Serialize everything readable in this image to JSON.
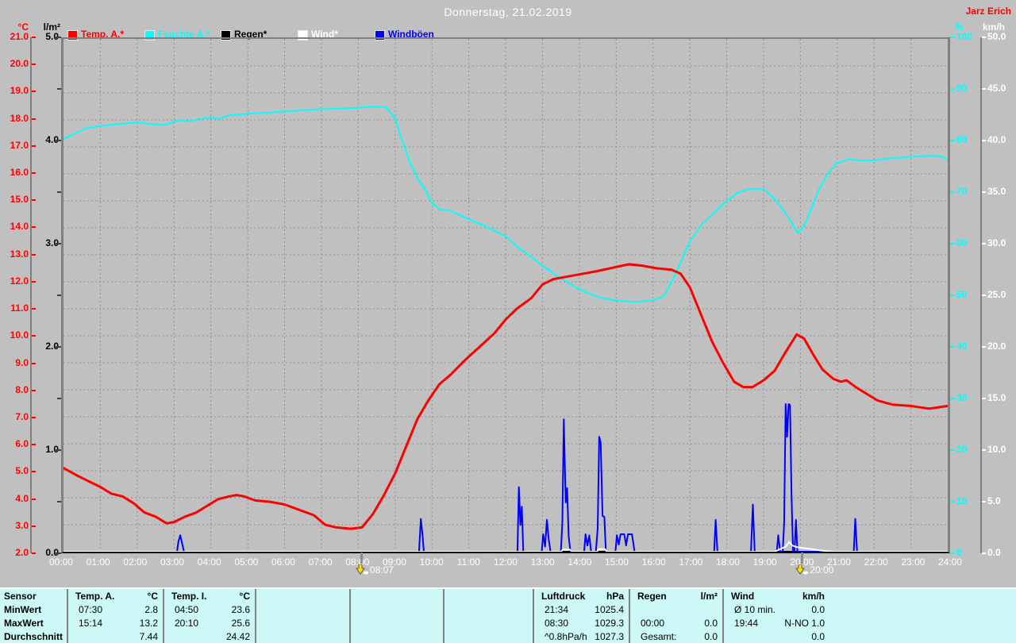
{
  "header": {
    "title": "Donnerstag, 21.02.2019",
    "author": "Jarz Erich"
  },
  "legend": [
    {
      "label": "Temp. A.*",
      "color": "#ff0000"
    },
    {
      "label": "Feuchte A.*",
      "color": "#00ffff"
    },
    {
      "label": "Regen*",
      "color": "#000000"
    },
    {
      "label": "Wind*",
      "color": "#ffffff"
    },
    {
      "label": "Windböen",
      "color": "#0000ff"
    }
  ],
  "axes": {
    "temp": {
      "unit": "°C",
      "color": "#ff0000",
      "min": 2,
      "max": 21,
      "step": 1,
      "decimals": 1
    },
    "rain": {
      "unit": "l/m²",
      "color": "#000000",
      "min": 0,
      "max": 5,
      "step": 1,
      "decimals": 1
    },
    "humidity": {
      "unit": "%",
      "color": "#00ffff",
      "min": 0,
      "max": 100,
      "step": 10,
      "decimals": 0
    },
    "wind": {
      "unit": "km/h",
      "color": "#ffffff",
      "min": 0,
      "max": 50,
      "step": 5,
      "decimals": 1
    }
  },
  "x_axis": {
    "labels": [
      "00:00",
      "01:00",
      "02:00",
      "03:00",
      "04:00",
      "05:00",
      "06:00",
      "07:00",
      "08:00",
      "09:00",
      "10:00",
      "11:00",
      "12:00",
      "13:00",
      "14:00",
      "15:00",
      "16:00",
      "17:00",
      "18:00",
      "19:00",
      "20:00",
      "21:00",
      "22:00",
      "23:00",
      "24:00"
    ]
  },
  "markers": [
    {
      "time": "08:07",
      "hour": 8.12
    },
    {
      "time": "20:00",
      "hour": 20.0
    }
  ],
  "chart_data": {
    "type": "line",
    "title": "Donnerstag, 21.02.2019",
    "x": {
      "min": 0,
      "max": 24,
      "unit": "h",
      "gridline_every": 1
    },
    "y_axes": {
      "temp_c": {
        "min": 2,
        "max": 21,
        "gridline_every": 1
      },
      "rain_lm2": {
        "min": 0,
        "max": 5
      },
      "humidity_pct": {
        "min": 0,
        "max": 100
      },
      "wind_kmh": {
        "min": 0,
        "max": 50
      }
    },
    "legend_position": "top",
    "grid": true,
    "series": [
      {
        "name": "Regen",
        "axis": "rain_lm2",
        "color": "#000000",
        "points": [
          [
            0,
            0
          ],
          [
            24,
            0
          ]
        ]
      },
      {
        "name": "Feuchte A.",
        "axis": "humidity_pct",
        "color": "#00ffff",
        "points": [
          [
            0,
            80.5
          ],
          [
            0.3,
            81.5
          ],
          [
            0.6,
            82.5
          ],
          [
            1,
            83
          ],
          [
            1.5,
            83.4
          ],
          [
            2,
            83.7
          ],
          [
            2.4,
            83.4
          ],
          [
            2.7,
            83.2
          ],
          [
            3,
            83.8
          ],
          [
            3.2,
            84.2
          ],
          [
            3.4,
            83.9
          ],
          [
            3.7,
            84.4
          ],
          [
            4,
            84.7
          ],
          [
            4.2,
            84.4
          ],
          [
            4.5,
            85.1
          ],
          [
            5,
            85.4
          ],
          [
            5.5,
            85.6
          ],
          [
            6,
            85.8
          ],
          [
            6.5,
            86.1
          ],
          [
            7,
            86.3
          ],
          [
            7.5,
            86.4
          ],
          [
            8,
            86.6
          ],
          [
            8.4,
            86.8
          ],
          [
            8.75,
            86.7
          ],
          [
            9,
            84.5
          ],
          [
            9.2,
            80
          ],
          [
            9.4,
            76
          ],
          [
            9.6,
            73
          ],
          [
            9.8,
            70.8
          ],
          [
            10,
            68
          ],
          [
            10.2,
            66.8
          ],
          [
            10.5,
            66.5
          ],
          [
            10.8,
            65.5
          ],
          [
            11.1,
            64.5
          ],
          [
            11.5,
            63.3
          ],
          [
            12,
            61.5
          ],
          [
            12.3,
            59.5
          ],
          [
            12.7,
            57.5
          ],
          [
            13,
            55.8
          ],
          [
            13.4,
            53.8
          ],
          [
            13.8,
            52
          ],
          [
            14.2,
            50.5
          ],
          [
            14.6,
            49.5
          ],
          [
            15,
            49
          ],
          [
            15.5,
            48.7
          ],
          [
            16,
            49
          ],
          [
            16.3,
            49.8
          ],
          [
            16.6,
            54
          ],
          [
            17,
            60.5
          ],
          [
            17.35,
            64
          ],
          [
            17.9,
            67.8
          ],
          [
            18.3,
            70
          ],
          [
            18.6,
            70.7
          ],
          [
            19,
            70.7
          ],
          [
            19.3,
            68.8
          ],
          [
            19.6,
            66
          ],
          [
            19.93,
            62.2
          ],
          [
            20.1,
            63.5
          ],
          [
            20.3,
            67
          ],
          [
            20.5,
            70.5
          ],
          [
            20.75,
            73.8
          ],
          [
            21,
            75.8
          ],
          [
            21.3,
            76.5
          ],
          [
            21.6,
            76.3
          ],
          [
            22,
            76.3
          ],
          [
            22.4,
            76.7
          ],
          [
            22.8,
            76.9
          ],
          [
            23.2,
            77.1
          ],
          [
            23.6,
            77.2
          ],
          [
            23.85,
            77
          ],
          [
            24,
            76.4
          ]
        ]
      },
      {
        "name": "Temp. A.",
        "axis": "temp_c",
        "color": "#ff0000",
        "points": [
          [
            0,
            5.1
          ],
          [
            0.2,
            4.95
          ],
          [
            0.4,
            4.8
          ],
          [
            0.7,
            4.6
          ],
          [
            1,
            4.4
          ],
          [
            1.3,
            4.15
          ],
          [
            1.6,
            4.05
          ],
          [
            1.9,
            3.8
          ],
          [
            2.2,
            3.45
          ],
          [
            2.5,
            3.3
          ],
          [
            2.8,
            3.05
          ],
          [
            3,
            3.1
          ],
          [
            3.3,
            3.3
          ],
          [
            3.6,
            3.45
          ],
          [
            3.9,
            3.7
          ],
          [
            4.2,
            3.95
          ],
          [
            4.5,
            4.05
          ],
          [
            4.7,
            4.1
          ],
          [
            4.9,
            4.05
          ],
          [
            5.2,
            3.9
          ],
          [
            5.6,
            3.85
          ],
          [
            6,
            3.75
          ],
          [
            6.4,
            3.55
          ],
          [
            6.8,
            3.35
          ],
          [
            7.1,
            3
          ],
          [
            7.4,
            2.9
          ],
          [
            7.8,
            2.85
          ],
          [
            8.1,
            2.9
          ],
          [
            8.4,
            3.4
          ],
          [
            8.7,
            4.1
          ],
          [
            9,
            4.9
          ],
          [
            9.3,
            5.9
          ],
          [
            9.6,
            6.9
          ],
          [
            9.9,
            7.6
          ],
          [
            10.2,
            8.2
          ],
          [
            10.5,
            8.55
          ],
          [
            10.9,
            9.1
          ],
          [
            11.3,
            9.6
          ],
          [
            11.7,
            10.1
          ],
          [
            12,
            10.6
          ],
          [
            12.3,
            11
          ],
          [
            12.7,
            11.4
          ],
          [
            13,
            11.9
          ],
          [
            13.3,
            12.1
          ],
          [
            13.7,
            12.2
          ],
          [
            14.1,
            12.3
          ],
          [
            14.5,
            12.4
          ],
          [
            15,
            12.55
          ],
          [
            15.35,
            12.65
          ],
          [
            15.7,
            12.6
          ],
          [
            16.1,
            12.5
          ],
          [
            16.5,
            12.45
          ],
          [
            16.75,
            12.3
          ],
          [
            17,
            11.8
          ],
          [
            17.3,
            10.8
          ],
          [
            17.6,
            9.8
          ],
          [
            17.9,
            9
          ],
          [
            18.2,
            8.3
          ],
          [
            18.45,
            8.1
          ],
          [
            18.7,
            8.1
          ],
          [
            19,
            8.35
          ],
          [
            19.3,
            8.7
          ],
          [
            19.6,
            9.4
          ],
          [
            19.9,
            10.05
          ],
          [
            20.1,
            9.9
          ],
          [
            20.35,
            9.3
          ],
          [
            20.6,
            8.75
          ],
          [
            20.9,
            8.4
          ],
          [
            21.1,
            8.3
          ],
          [
            21.25,
            8.35
          ],
          [
            21.5,
            8.1
          ],
          [
            21.8,
            7.85
          ],
          [
            22.1,
            7.6
          ],
          [
            22.5,
            7.45
          ],
          [
            23,
            7.4
          ],
          [
            23.5,
            7.3
          ],
          [
            24,
            7.4
          ]
        ]
      },
      {
        "name": "Windböen",
        "axis": "wind_kmh",
        "color": "#0000ff",
        "points": [
          [
            0,
            0
          ],
          [
            3.08,
            0
          ],
          [
            3.12,
            1
          ],
          [
            3.17,
            1.6
          ],
          [
            3.22,
            0.8
          ],
          [
            3.27,
            0
          ],
          [
            9.65,
            0
          ],
          [
            9.7,
            3.2
          ],
          [
            9.74,
            1.8
          ],
          [
            9.78,
            0
          ],
          [
            12.32,
            0
          ],
          [
            12.36,
            6.3
          ],
          [
            12.4,
            2.6
          ],
          [
            12.44,
            4.4
          ],
          [
            12.48,
            0
          ],
          [
            12.98,
            0
          ],
          [
            13.02,
            1.7
          ],
          [
            13.07,
            0.5
          ],
          [
            13.12,
            3.1
          ],
          [
            13.17,
            1.2
          ],
          [
            13.22,
            0
          ],
          [
            13.5,
            0
          ],
          [
            13.54,
            2.9
          ],
          [
            13.58,
            12.9
          ],
          [
            13.63,
            4.8
          ],
          [
            13.67,
            6.2
          ],
          [
            13.71,
            1.5
          ],
          [
            13.76,
            0
          ],
          [
            14.13,
            0
          ],
          [
            14.17,
            1.7
          ],
          [
            14.22,
            0.6
          ],
          [
            14.27,
            1.6
          ],
          [
            14.32,
            0
          ],
          [
            14.45,
            0
          ],
          [
            14.5,
            2.3
          ],
          [
            14.54,
            11.2
          ],
          [
            14.58,
            10.6
          ],
          [
            14.63,
            3.5
          ],
          [
            14.68,
            3.4
          ],
          [
            14.72,
            0
          ],
          [
            14.98,
            0
          ],
          [
            15.02,
            1.6
          ],
          [
            15.07,
            0.7
          ],
          [
            15.12,
            1.7
          ],
          [
            15.22,
            1.7
          ],
          [
            15.27,
            0.6
          ],
          [
            15.32,
            1.7
          ],
          [
            15.43,
            1.7
          ],
          [
            15.5,
            0
          ],
          [
            17.66,
            0
          ],
          [
            17.7,
            3.1
          ],
          [
            17.75,
            0
          ],
          [
            18.66,
            0
          ],
          [
            18.71,
            4.6
          ],
          [
            18.76,
            0
          ],
          [
            19.36,
            0
          ],
          [
            19.4,
            1.6
          ],
          [
            19.45,
            0
          ],
          [
            19.52,
            0
          ],
          [
            19.56,
            2.8
          ],
          [
            19.6,
            14.4
          ],
          [
            19.64,
            11.2
          ],
          [
            19.68,
            14.4
          ],
          [
            19.72,
            14.3
          ],
          [
            19.76,
            5.5
          ],
          [
            19.8,
            0
          ],
          [
            19.84,
            0
          ],
          [
            19.88,
            3.1
          ],
          [
            19.92,
            0
          ],
          [
            21.45,
            0
          ],
          [
            21.49,
            3.2
          ],
          [
            21.54,
            0
          ],
          [
            24,
            0
          ]
        ]
      },
      {
        "name": "Wind",
        "axis": "wind_kmh",
        "color": "#ffffff",
        "points": [
          [
            0,
            0
          ],
          [
            13.5,
            0
          ],
          [
            13.55,
            0.2
          ],
          [
            13.75,
            0.2
          ],
          [
            13.8,
            0
          ],
          [
            14.48,
            0
          ],
          [
            14.52,
            0.25
          ],
          [
            14.7,
            0.25
          ],
          [
            14.75,
            0
          ],
          [
            19.3,
            0
          ],
          [
            19.45,
            0.25
          ],
          [
            19.6,
            0.5
          ],
          [
            19.7,
            0.95
          ],
          [
            19.78,
            0.6
          ],
          [
            19.9,
            0.45
          ],
          [
            20.1,
            0.35
          ],
          [
            20.3,
            0.25
          ],
          [
            20.6,
            0.1
          ],
          [
            20.9,
            0
          ],
          [
            24,
            0
          ]
        ]
      }
    ]
  },
  "table": {
    "row_labels": [
      "Sensor",
      "MinWert",
      "MaxWert",
      "Durchschnitt"
    ],
    "columns": [
      {
        "name": "Temp. A.",
        "unit": "°C",
        "rows": [
          [
            "07:30",
            "2.8"
          ],
          [
            "15:14",
            "13.2"
          ],
          [
            "",
            "7.44"
          ]
        ]
      },
      {
        "name": "Temp. I.",
        "unit": "°C",
        "rows": [
          [
            "04:50",
            "23.6"
          ],
          [
            "20:10",
            "25.6"
          ],
          [
            "",
            "24.42"
          ]
        ]
      },
      {
        "name": "",
        "unit": "",
        "rows": [
          [
            "",
            ""
          ],
          [
            "",
            ""
          ],
          [
            "",
            ""
          ]
        ]
      },
      {
        "name": "",
        "unit": "",
        "rows": [
          [
            "",
            ""
          ],
          [
            "",
            ""
          ],
          [
            "",
            ""
          ]
        ]
      },
      {
        "name": "",
        "unit": "",
        "rows": [
          [
            "",
            ""
          ],
          [
            "",
            ""
          ],
          [
            "",
            ""
          ]
        ]
      },
      {
        "name": "Luftdruck",
        "unit": "hPa",
        "rows": [
          [
            "21:34",
            "1025.4"
          ],
          [
            "08:30",
            "1029.3"
          ],
          [
            "^0.8hPa/h",
            "1027.3"
          ]
        ]
      },
      {
        "name": "Regen",
        "unit": "l/m²",
        "rows": [
          [
            "",
            ""
          ],
          [
            "00:00",
            "0.0"
          ],
          [
            "Gesamt:",
            "0.0"
          ]
        ]
      },
      {
        "name": "Wind",
        "unit": "km/h",
        "rows": [
          [
            "Ø 10 min.",
            "0.0"
          ],
          [
            "19:44",
            "N-NO 1.0"
          ],
          [
            "",
            "0.0"
          ]
        ]
      }
    ]
  }
}
